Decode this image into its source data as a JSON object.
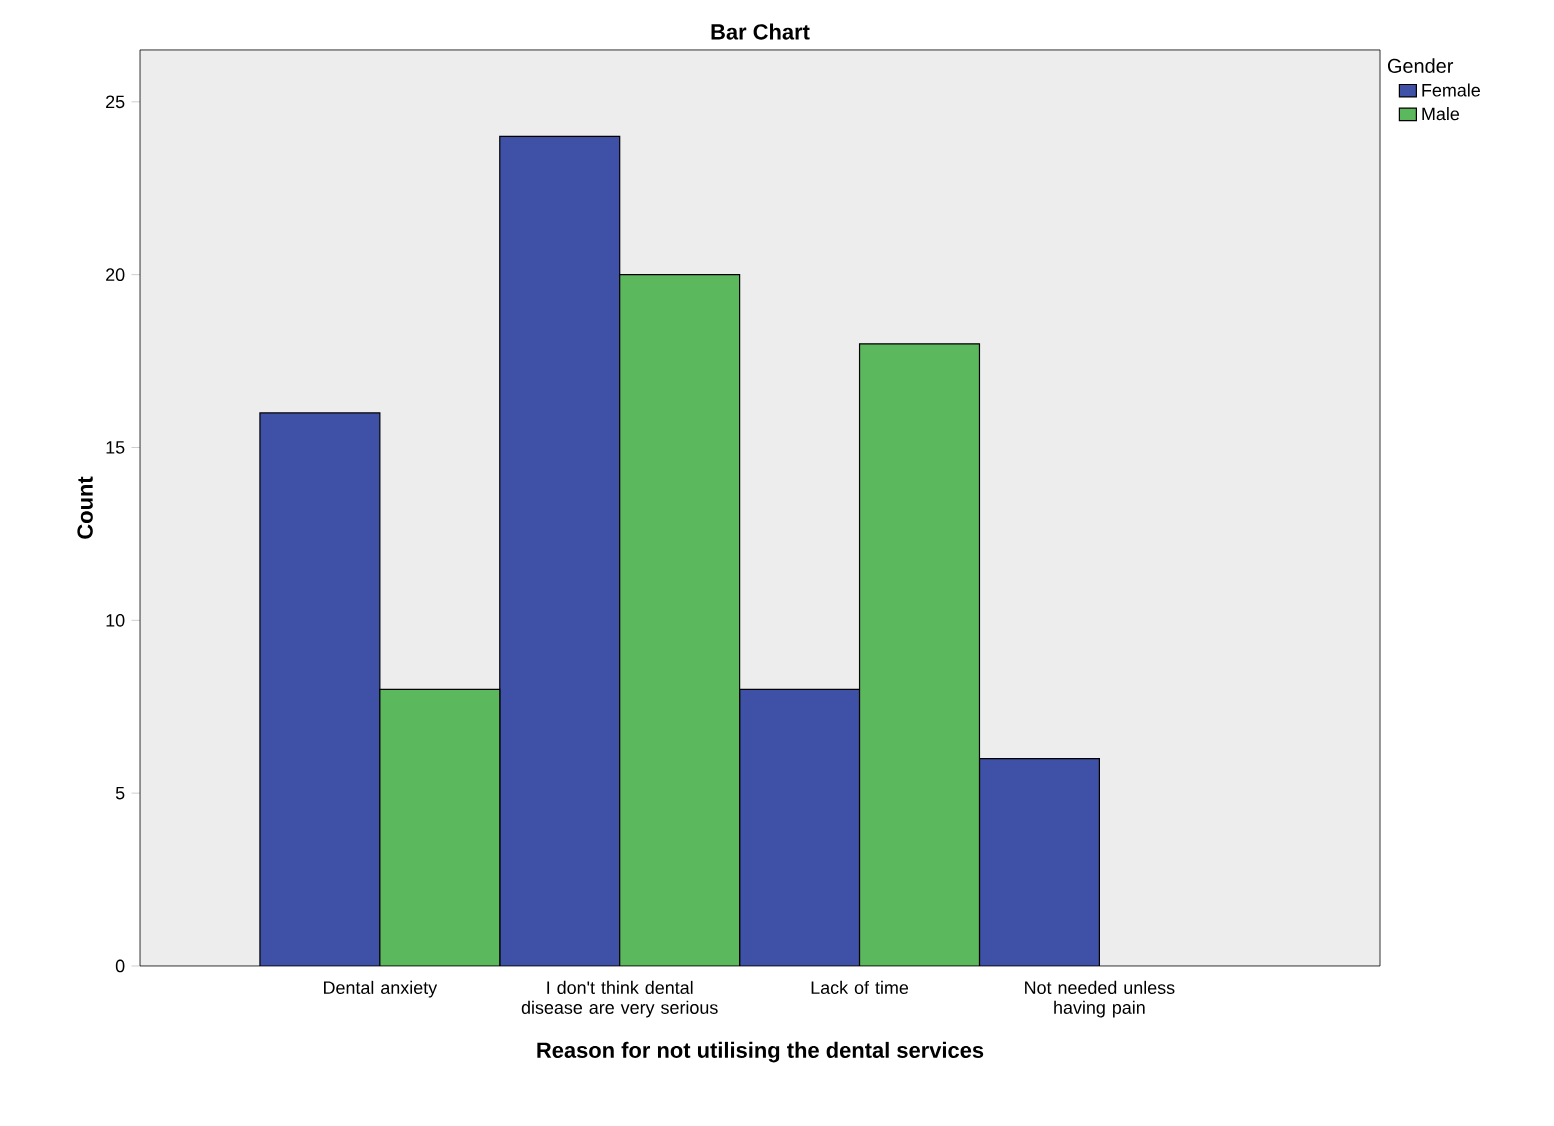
{
  "chart_data": {
    "type": "bar",
    "title": "Bar Chart",
    "xlabel": "Reason for not utilising the dental services",
    "ylabel": "Count",
    "legend_title": "Gender",
    "legend": "right",
    "categories": [
      "Dental anxiety",
      "I don't think dental disease are very serious",
      "Lack of time",
      "Not needed unless having pain"
    ],
    "series": [
      {
        "name": "Female",
        "color": "#3f51a6",
        "values": [
          16,
          24,
          8,
          6
        ]
      },
      {
        "name": "Male",
        "color": "#5cb85c",
        "values": [
          8,
          20,
          18,
          null
        ]
      }
    ],
    "ylim": [
      0,
      26.5
    ],
    "yticks": [
      0,
      5,
      10,
      15,
      20,
      25
    ],
    "grid": false
  }
}
